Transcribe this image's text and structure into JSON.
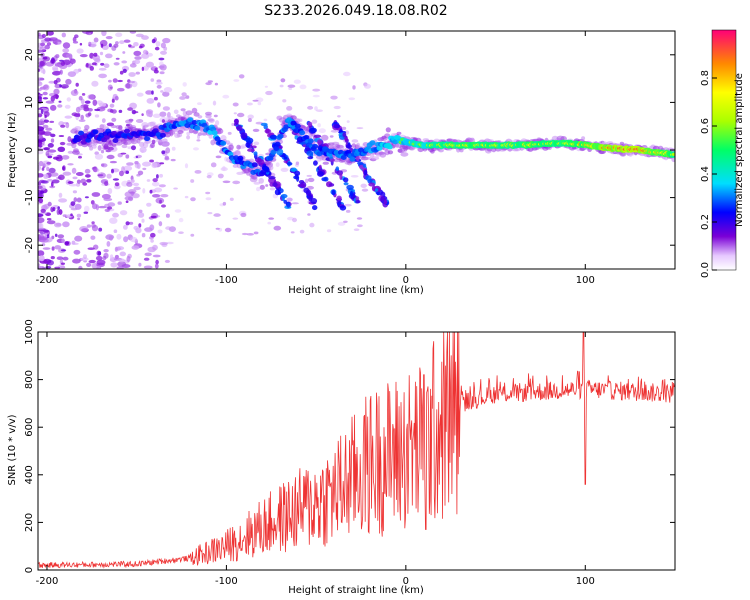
{
  "title": "S233.2026.049.18.08.R02",
  "chart_data": [
    {
      "type": "heatmap",
      "xlabel": "Height of straight line (km)",
      "ylabel": "Frequency (Hz)",
      "xlim": [
        -205,
        150
      ],
      "ylim": [
        -25,
        25
      ],
      "xticks": [
        -200,
        -100,
        0,
        100
      ],
      "yticks": [
        20,
        10,
        0,
        -10,
        -20
      ],
      "colorbar": {
        "label": "Normalized spectral amplitude",
        "range": [
          0,
          1
        ],
        "ticks": [
          "0.0",
          "0.2",
          "0.4",
          "0.6",
          "0.8"
        ],
        "tick_values": [
          0.0,
          0.2,
          0.4,
          0.6,
          0.8
        ]
      },
      "track": [
        {
          "x": -180,
          "y": 2.5,
          "a": 0.3
        },
        {
          "x": -160,
          "y": 3.0,
          "a": 0.3
        },
        {
          "x": -140,
          "y": 3.5,
          "a": 0.35
        },
        {
          "x": -125,
          "y": 6.0,
          "a": 0.4
        },
        {
          "x": -110,
          "y": 5.0,
          "a": 0.45
        },
        {
          "x": -95,
          "y": -2.0,
          "a": 0.4
        },
        {
          "x": -80,
          "y": -5.0,
          "a": 0.35
        },
        {
          "x": -65,
          "y": 6.5,
          "a": 0.4
        },
        {
          "x": -50,
          "y": 0.0,
          "a": 0.4
        },
        {
          "x": -35,
          "y": -1.0,
          "a": 0.4
        },
        {
          "x": -20,
          "y": 0.0,
          "a": 0.45
        },
        {
          "x": -5,
          "y": 2.0,
          "a": 0.5
        },
        {
          "x": 10,
          "y": 1.0,
          "a": 0.6
        },
        {
          "x": 30,
          "y": 1.0,
          "a": 0.7
        },
        {
          "x": 60,
          "y": 1.0,
          "a": 0.7
        },
        {
          "x": 90,
          "y": 1.5,
          "a": 0.7
        },
        {
          "x": 110,
          "y": 0.5,
          "a": 0.85
        },
        {
          "x": 130,
          "y": 0.0,
          "a": 0.9
        },
        {
          "x": 150,
          "y": -1.0,
          "a": 0.7
        }
      ]
    },
    {
      "type": "line",
      "xlabel": "Height of straight line (km)",
      "ylabel": "SNR (10 * v/v)",
      "xlim": [
        -205,
        150
      ],
      "ylim": [
        0,
        1000
      ],
      "xticks": [
        -200,
        -100,
        0,
        100
      ],
      "yticks": [
        0,
        200,
        400,
        600,
        800,
        1000
      ],
      "color": "#ee3333",
      "envelope": [
        {
          "x": -205,
          "y": 20
        },
        {
          "x": -150,
          "y": 25
        },
        {
          "x": -120,
          "y": 50
        },
        {
          "x": -100,
          "y": 100
        },
        {
          "x": -80,
          "y": 180
        },
        {
          "x": -60,
          "y": 250
        },
        {
          "x": -40,
          "y": 320
        },
        {
          "x": -20,
          "y": 450
        },
        {
          "x": 0,
          "y": 500
        },
        {
          "x": 10,
          "y": 520
        },
        {
          "x": 20,
          "y": 620
        },
        {
          "x": 30,
          "y": 700
        },
        {
          "x": 50,
          "y": 740
        },
        {
          "x": 100,
          "y": 760
        },
        {
          "x": 150,
          "y": 740
        }
      ],
      "spikes": [
        {
          "x": -16,
          "y": 690
        },
        {
          "x": 10,
          "y": 820
        },
        {
          "x": 11,
          "y": 170
        },
        {
          "x": 99,
          "y": 1000
        },
        {
          "x": 100,
          "y": 360
        }
      ]
    }
  ]
}
